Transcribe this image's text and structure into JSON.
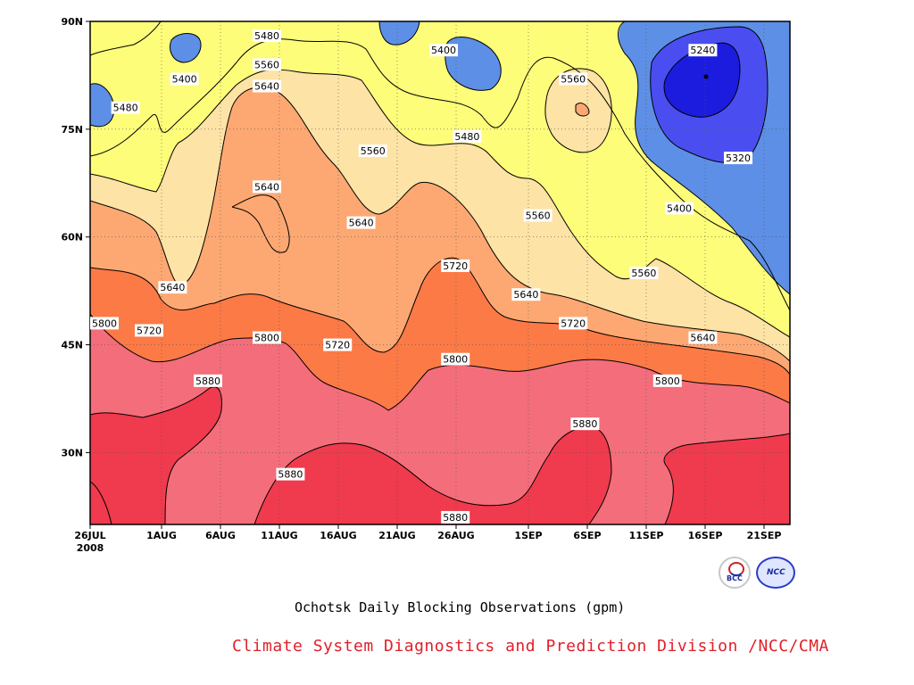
{
  "chart_data": {
    "type": "contour",
    "title": "Ochotsk Daily Blocking Observations (gpm)",
    "credit": "Climate System Diagnostics and Prediction Division /NCC/CMA",
    "xlabel": "",
    "ylabel": "",
    "x_ticks": [
      "26JUL",
      "1AUG",
      "6AUG",
      "11AUG",
      "16AUG",
      "21AUG",
      "26AUG",
      "1SEP",
      "6SEP",
      "11SEP",
      "16SEP",
      "21SEP"
    ],
    "x_tick_sub": "2008",
    "y_ticks": [
      "30N",
      "45N",
      "60N",
      "75N",
      "90N"
    ],
    "ylim": [
      20,
      90
    ],
    "grid": true,
    "contour_levels": [
      5240,
      5320,
      5400,
      5480,
      5560,
      5640,
      5720,
      5800,
      5880
    ],
    "contour_labels": [
      {
        "value": "5240",
        "date": "16SEP",
        "lat": 86
      },
      {
        "value": "5320",
        "date": "19SEP",
        "lat": 71
      },
      {
        "value": "5400",
        "date": "3AUG",
        "lat": 82
      },
      {
        "value": "5400",
        "date": "25AUG",
        "lat": 86
      },
      {
        "value": "5400",
        "date": "14SEP",
        "lat": 64
      },
      {
        "value": "5480",
        "date": "10AUG",
        "lat": 88
      },
      {
        "value": "5480",
        "date": "29JUL",
        "lat": 78
      },
      {
        "value": "5480",
        "date": "27AUG",
        "lat": 74
      },
      {
        "value": "5560",
        "date": "10AUG",
        "lat": 84
      },
      {
        "value": "5560",
        "date": "19AUG",
        "lat": 72
      },
      {
        "value": "5560",
        "date": "5SEP",
        "lat": 82
      },
      {
        "value": "5560",
        "date": "2SEP",
        "lat": 63
      },
      {
        "value": "5560",
        "date": "11SEP",
        "lat": 55
      },
      {
        "value": "5640",
        "date": "10AUG",
        "lat": 81
      },
      {
        "value": "5640",
        "date": "10AUG",
        "lat": 67
      },
      {
        "value": "5640",
        "date": "18AUG",
        "lat": 62
      },
      {
        "value": "5640",
        "date": "2AUG",
        "lat": 53
      },
      {
        "value": "5640",
        "date": "1SEP",
        "lat": 52
      },
      {
        "value": "5640",
        "date": "16SEP",
        "lat": 46
      },
      {
        "value": "5720",
        "date": "26AUG",
        "lat": 56
      },
      {
        "value": "5720",
        "date": "31JUL",
        "lat": 47
      },
      {
        "value": "5720",
        "date": "16AUG",
        "lat": 45
      },
      {
        "value": "5720",
        "date": "5SEP",
        "lat": 48
      },
      {
        "value": "5800",
        "date": "27JUL",
        "lat": 48
      },
      {
        "value": "5800",
        "date": "10AUG",
        "lat": 46
      },
      {
        "value": "5800",
        "date": "26AUG",
        "lat": 43
      },
      {
        "value": "5800",
        "date": "13SEP",
        "lat": 40
      },
      {
        "value": "5880",
        "date": "5AUG",
        "lat": 40
      },
      {
        "value": "5880",
        "date": "6SEP",
        "lat": 34
      },
      {
        "value": "5880",
        "date": "12AUG",
        "lat": 27
      },
      {
        "value": "5880",
        "date": "26AUG",
        "lat": 21
      }
    ],
    "fill_colors": {
      "lt5240": "#1c1cdf",
      "5240-5320": "#4a4ef0",
      "5320-5400": "#5d8fe6",
      "5400-5480": "#5cc6fa",
      "5480-5560": "#fdfd7a",
      "5560-5640": "#fde3a5",
      "5640-5720": "#fda872",
      "5720-5800": "#fc7a46",
      "5800-5880": "#f46d7a",
      "gt5880": "#f03a4d"
    }
  },
  "logos": {
    "left": "BCC",
    "right": "NCC"
  }
}
